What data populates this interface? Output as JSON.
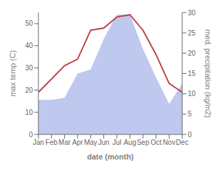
{
  "chart_data": {
    "type": "line",
    "categories": [
      "Jan",
      "Feb",
      "Mar",
      "Apr",
      "May",
      "Jun",
      "Jul",
      "Aug",
      "Sep",
      "Oct",
      "Nov",
      "Dec"
    ],
    "xlabel": "date (month)",
    "ylabel": "max temp (C)",
    "y2label": "med. precipitation (kg/m2)",
    "series": [
      {
        "type": "area",
        "axis": "y2",
        "color": "#bfc8ee",
        "values": [
          8.5,
          8.5,
          9,
          15,
          16,
          23.5,
          29.5,
          29.5,
          21,
          14,
          7.5,
          12.5
        ]
      },
      {
        "type": "line",
        "color": "#c0404a",
        "values": [
          19,
          25,
          31,
          34,
          47,
          48,
          53,
          54,
          47,
          36,
          23,
          19
        ]
      }
    ],
    "ylim": [
      0,
      55
    ],
    "yticks": [
      0,
      10,
      20,
      30,
      40,
      50
    ],
    "y2lim": [
      0,
      30
    ],
    "y2ticks": [
      0,
      5,
      10,
      15,
      20,
      25,
      30
    ],
    "grid": false
  }
}
